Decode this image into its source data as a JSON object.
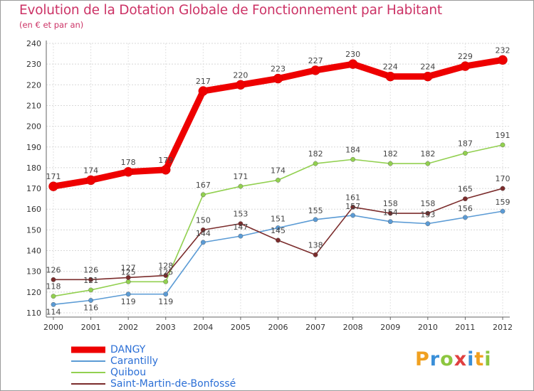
{
  "header": {
    "title": "Evolution de la Dotation Globale de Fonctionnement par Habitant",
    "subtitle": "(en € et par an)"
  },
  "logo": {
    "text": "Proxiti",
    "letters": [
      {
        "ch": "P",
        "color": "#f0a020"
      },
      {
        "ch": "r",
        "color": "#3a8fd8"
      },
      {
        "ch": "o",
        "color": "#8cc63f"
      },
      {
        "ch": "x",
        "color": "#e04040"
      },
      {
        "ch": "i",
        "color": "#3a8fd8"
      },
      {
        "ch": "t",
        "color": "#f0a020"
      },
      {
        "ch": "i",
        "color": "#8cc63f"
      }
    ]
  },
  "chart_data": {
    "type": "line",
    "title": "Evolution de la Dotation Globale de Fonctionnement par Habitant",
    "subtitle": "(en € et par an)",
    "xlabel": "",
    "ylabel": "",
    "categories": [
      "2000",
      "2001",
      "2002",
      "2003",
      "2004",
      "2005",
      "2006",
      "2007",
      "2008",
      "2009",
      "2010",
      "2011",
      "2012"
    ],
    "ylim": [
      110,
      240
    ],
    "yticks": [
      110,
      120,
      130,
      140,
      150,
      160,
      170,
      180,
      190,
      200,
      210,
      220,
      230,
      240
    ],
    "grid": true,
    "legend_position": "bottom-left",
    "series": [
      {
        "name": "DANGY",
        "color": "#ee0000",
        "values": [
          171,
          174,
          178,
          179,
          217,
          220,
          223,
          227,
          230,
          224,
          224,
          229,
          232
        ],
        "labels": [
          "171",
          "174",
          "178",
          "179",
          "217",
          "220",
          "223",
          "227",
          "230",
          "224",
          "224",
          "229",
          "232"
        ]
      },
      {
        "name": "Carantilly",
        "color": "#5b9bd5",
        "values": [
          114,
          116,
          119,
          119,
          144,
          147,
          151,
          155,
          157,
          154,
          153,
          156,
          159
        ],
        "labels": [
          "114",
          "116",
          "119",
          "119",
          "144",
          "147",
          "151",
          "155",
          "157",
          "154",
          "153",
          "156",
          "159"
        ]
      },
      {
        "name": "Quibou",
        "color": "#92d050",
        "values": [
          118,
          121,
          125,
          125,
          167,
          171,
          174,
          182,
          184,
          182,
          182,
          187,
          191
        ],
        "labels": [
          "118",
          "121",
          "125",
          "125",
          "167",
          "171",
          "174",
          "182",
          "184",
          "182",
          "182",
          "187",
          "191"
        ]
      },
      {
        "name": "Saint-Martin-de-Bonfossé",
        "color": "#7b2c2c",
        "values": [
          126,
          126,
          127,
          128,
          150,
          153,
          145,
          138,
          161,
          158,
          158,
          165,
          170
        ],
        "labels": [
          "126",
          "126",
          "127",
          "128",
          "150",
          "153",
          "145",
          "138",
          "161",
          "158",
          "158",
          "165",
          "170"
        ]
      }
    ]
  }
}
